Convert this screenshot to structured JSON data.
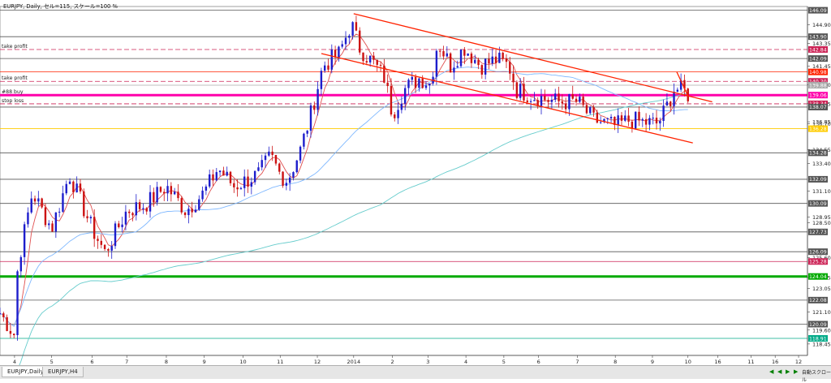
{
  "header": {
    "info": "EURJPY, Daily, セル=115, スケール=100 %"
  },
  "tabs": [
    {
      "label": "EURJPY,Daily",
      "active": true
    },
    {
      "label": "EURJPY,H4",
      "active": false
    }
  ],
  "status": {
    "autoscroll_label": "自動スクロール"
  },
  "chart_data": {
    "type": "candlestick",
    "symbol": "EURJPY",
    "timeframe": "Daily",
    "ylim": [
      117.5,
      146.4
    ],
    "y_ticks": [
      "144.90",
      "143.35",
      "141.45",
      "139.90",
      "138.35",
      "136.85",
      "136.70",
      "134.55",
      "133.40",
      "131.10",
      "128.95",
      "128.50",
      "125.60",
      "123.95",
      "123.05",
      "121.10",
      "119.60",
      "118.45"
    ],
    "x_ticks": [
      {
        "label": "4",
        "pos": 0.018
      },
      {
        "label": "5",
        "pos": 0.064
      },
      {
        "label": "6",
        "pos": 0.114
      },
      {
        "label": "7",
        "pos": 0.157
      },
      {
        "label": "8",
        "pos": 0.206
      },
      {
        "label": "9",
        "pos": 0.253
      },
      {
        "label": "10",
        "pos": 0.301
      },
      {
        "label": "11",
        "pos": 0.347
      },
      {
        "label": "12",
        "pos": 0.393
      },
      {
        "label": "2014",
        "pos": 0.438
      },
      {
        "label": "2",
        "pos": 0.486
      },
      {
        "label": "3",
        "pos": 0.53
      },
      {
        "label": "4",
        "pos": 0.577
      },
      {
        "label": "5",
        "pos": 0.624
      },
      {
        "label": "6",
        "pos": 0.667
      },
      {
        "label": "7",
        "pos": 0.715
      },
      {
        "label": "8",
        "pos": 0.762
      },
      {
        "label": "9",
        "pos": 0.808
      },
      {
        "label": "10",
        "pos": 0.852
      },
      {
        "label": "16",
        "pos": 0.889
      },
      {
        "label": "11",
        "pos": 0.93
      },
      {
        "label": "16",
        "pos": 0.96
      },
      {
        "label": "12",
        "pos": 0.989
      }
    ],
    "annotations": [
      {
        "text": "take profit",
        "y": 142.84,
        "color": "#cc2255",
        "style": "dash"
      },
      {
        "text": "take profit",
        "y": 140.2,
        "color": "#cc2255",
        "style": "dash"
      },
      {
        "text": "#88 buy",
        "y": 139.06,
        "color": "#ff00aa",
        "style": "solid"
      },
      {
        "text": "stop loss",
        "y": 138.34,
        "color": "#cc2255",
        "style": "dash"
      }
    ],
    "levels": [
      {
        "value": 146.09,
        "color": "#555555",
        "label": "146.09"
      },
      {
        "value": 143.9,
        "color": "#555555",
        "label": "143.90"
      },
      {
        "value": 142.84,
        "color": "#cc2255",
        "label": "142.84",
        "dash": true
      },
      {
        "value": 142.09,
        "color": "#555555",
        "label": "142.09"
      },
      {
        "value": 140.98,
        "color": "#ff2200",
        "label": "140.98"
      },
      {
        "value": 140.2,
        "color": "#cc2255",
        "label": "140.20",
        "dash": true
      },
      {
        "value": 139.88,
        "color": "#aaaaaa",
        "label": "139.88"
      },
      {
        "value": 139.06,
        "color": "#ff00aa",
        "label": "139.06",
        "thick": true
      },
      {
        "value": 138.34,
        "color": "#cc2255",
        "label": "138.34",
        "dash": true
      },
      {
        "value": 138.07,
        "color": "#555555",
        "label": "138.07"
      },
      {
        "value": 136.28,
        "color": "#ffcc00",
        "label": "136.28"
      },
      {
        "value": 134.28,
        "color": "#555555",
        "label": "134.28"
      },
      {
        "value": 132.09,
        "color": "#555555",
        "label": "132.09"
      },
      {
        "value": 130.09,
        "color": "#555555",
        "label": "130.09"
      },
      {
        "value": 127.73,
        "color": "#555555",
        "label": "127.73"
      },
      {
        "value": 126.09,
        "color": "#555555",
        "label": "126.09"
      },
      {
        "value": 125.28,
        "color": "#cc2255",
        "label": "125.28"
      },
      {
        "value": 124.04,
        "color": "#00aa00",
        "label": "124.04",
        "thick": true
      },
      {
        "value": 122.08,
        "color": "#555555",
        "label": "122.08"
      },
      {
        "value": 120.09,
        "color": "#555555",
        "label": "120.09"
      },
      {
        "value": 118.91,
        "color": "#00aa88",
        "label": "118.91"
      }
    ],
    "colors": {
      "bull": "#1d1dcc",
      "bear": "#cc1111",
      "ma_fast": "#e05050",
      "ma_mid": "#7fb8ff",
      "ma_slow": "#66cccc",
      "trend": "#ff2200"
    },
    "trendlines": [
      {
        "from": [
          0.438,
          145.8
        ],
        "to": [
          0.882,
          138.5
        ],
        "color": "#ff2200"
      },
      {
        "from": [
          0.398,
          142.5
        ],
        "to": [
          0.858,
          135.1
        ],
        "color": "#ff2200"
      },
      {
        "from": [
          0.838,
          141.0
        ],
        "to": [
          0.852,
          139.0
        ],
        "color": "#ff2200"
      }
    ],
    "anchors": [
      [
        0.0,
        121.0
      ],
      [
        0.018,
        119.2
      ],
      [
        0.022,
        125.0
      ],
      [
        0.04,
        131.0
      ],
      [
        0.064,
        128.0
      ],
      [
        0.086,
        132.5
      ],
      [
        0.114,
        128.0
      ],
      [
        0.13,
        126.0
      ],
      [
        0.157,
        129.5
      ],
      [
        0.18,
        130.0
      ],
      [
        0.206,
        131.5
      ],
      [
        0.23,
        129.5
      ],
      [
        0.253,
        131.0
      ],
      [
        0.27,
        133.0
      ],
      [
        0.29,
        131.5
      ],
      [
        0.32,
        132.5
      ],
      [
        0.335,
        134.0
      ],
      [
        0.347,
        132.5
      ],
      [
        0.356,
        132.0
      ],
      [
        0.372,
        134.5
      ],
      [
        0.385,
        137.5
      ],
      [
        0.4,
        141.5
      ],
      [
        0.42,
        142.5
      ],
      [
        0.435,
        145.0
      ],
      [
        0.445,
        143.0
      ],
      [
        0.465,
        141.5
      ],
      [
        0.476,
        140.5
      ],
      [
        0.486,
        137.5
      ],
      [
        0.5,
        139.5
      ],
      [
        0.52,
        140.5
      ],
      [
        0.533,
        140.0
      ],
      [
        0.542,
        143.5
      ],
      [
        0.558,
        141.5
      ],
      [
        0.575,
        143.0
      ],
      [
        0.595,
        141.5
      ],
      [
        0.615,
        142.0
      ],
      [
        0.63,
        141.5
      ],
      [
        0.64,
        139.5
      ],
      [
        0.66,
        139.0
      ],
      [
        0.69,
        138.5
      ],
      [
        0.715,
        138.5
      ],
      [
        0.735,
        137.0
      ],
      [
        0.762,
        136.5
      ],
      [
        0.78,
        137.0
      ],
      [
        0.798,
        136.8
      ],
      [
        0.815,
        136.7
      ],
      [
        0.825,
        138.0
      ],
      [
        0.835,
        139.6
      ],
      [
        0.845,
        139.5
      ],
      [
        0.852,
        139.1
      ]
    ],
    "n_candles": 198
  }
}
